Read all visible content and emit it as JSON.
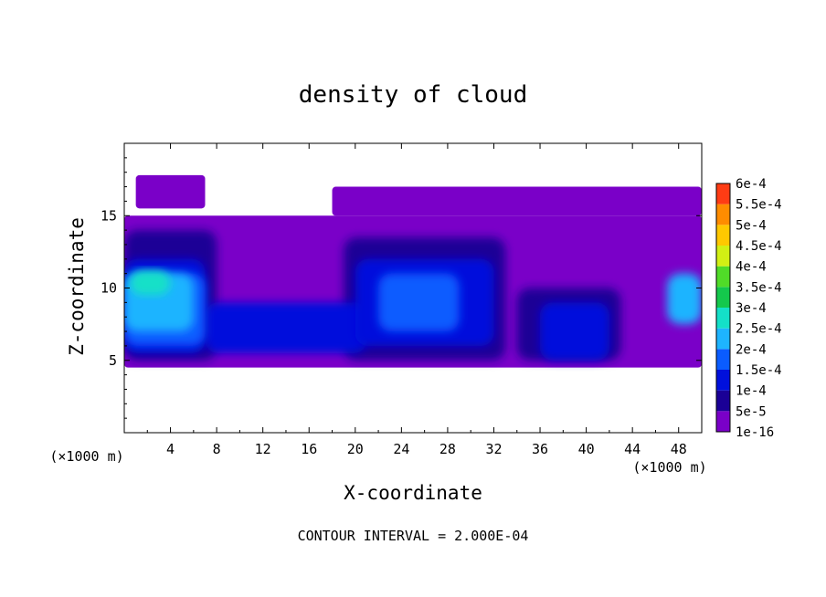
{
  "chart_data": {
    "type": "heatmap",
    "title": "density of cloud",
    "xlabel": "X-coordinate",
    "ylabel": "Z-coordinate",
    "x_unit": "(×1000 m)",
    "y_unit": "(×1000 m)",
    "footer": "CONTOUR INTERVAL = 2.000E-04",
    "xlim": [
      0,
      50
    ],
    "ylim": [
      0,
      20
    ],
    "x_ticks": [
      "4",
      "8",
      "12",
      "16",
      "20",
      "24",
      "28",
      "32",
      "36",
      "40",
      "44",
      "48"
    ],
    "y_ticks": [
      "5",
      "10",
      "15"
    ],
    "colorbar": {
      "labels": [
        "1e-16",
        "5e-5",
        "1e-4",
        "1.5e-4",
        "2e-4",
        "2.5e-4",
        "3e-4",
        "3.5e-4",
        "4e-4",
        "4.5e-4",
        "5e-4",
        "5.5e-4",
        "6e-4"
      ],
      "colors": [
        "#7a00c8",
        "#1a0096",
        "#0010dc",
        "#0a5cff",
        "#1eb4ff",
        "#14e0c8",
        "#14c84c",
        "#50dc28",
        "#d2f014",
        "#ffc800",
        "#ff8c00",
        "#ff3c14",
        "#ff8c8c"
      ]
    },
    "regions": [
      {
        "level": 0,
        "x": [
          0,
          50
        ],
        "z": [
          4.5,
          15
        ]
      },
      {
        "level": 0,
        "x": [
          18,
          50
        ],
        "z": [
          15,
          17
        ]
      },
      {
        "level": 0,
        "x": [
          1,
          7
        ],
        "z": [
          15.5,
          17.8
        ]
      },
      {
        "level": 1,
        "x": [
          19,
          33
        ],
        "z": [
          5,
          13.5
        ]
      },
      {
        "level": 1,
        "x": [
          0,
          8
        ],
        "z": [
          5,
          14
        ]
      },
      {
        "level": 1,
        "x": [
          34,
          43
        ],
        "z": [
          5,
          10
        ]
      },
      {
        "level": 2,
        "x": [
          7,
          21
        ],
        "z": [
          5.5,
          9
        ]
      },
      {
        "level": 2,
        "x": [
          20,
          32
        ],
        "z": [
          6,
          12
        ]
      },
      {
        "level": 2,
        "x": [
          0,
          7
        ],
        "z": [
          5.5,
          12
        ]
      },
      {
        "level": 2,
        "x": [
          36,
          42
        ],
        "z": [
          5,
          9
        ]
      },
      {
        "level": 3,
        "x": [
          0,
          7
        ],
        "z": [
          6,
          11
        ]
      },
      {
        "level": 3,
        "x": [
          22,
          29
        ],
        "z": [
          7,
          11
        ]
      },
      {
        "level": 4,
        "x": [
          0,
          6
        ],
        "z": [
          7,
          11
        ]
      },
      {
        "level": 4,
        "x": [
          47,
          50
        ],
        "z": [
          7.5,
          11
        ]
      },
      {
        "level": 5,
        "x": [
          0.5,
          4
        ],
        "z": [
          9.5,
          11.2
        ]
      }
    ]
  }
}
